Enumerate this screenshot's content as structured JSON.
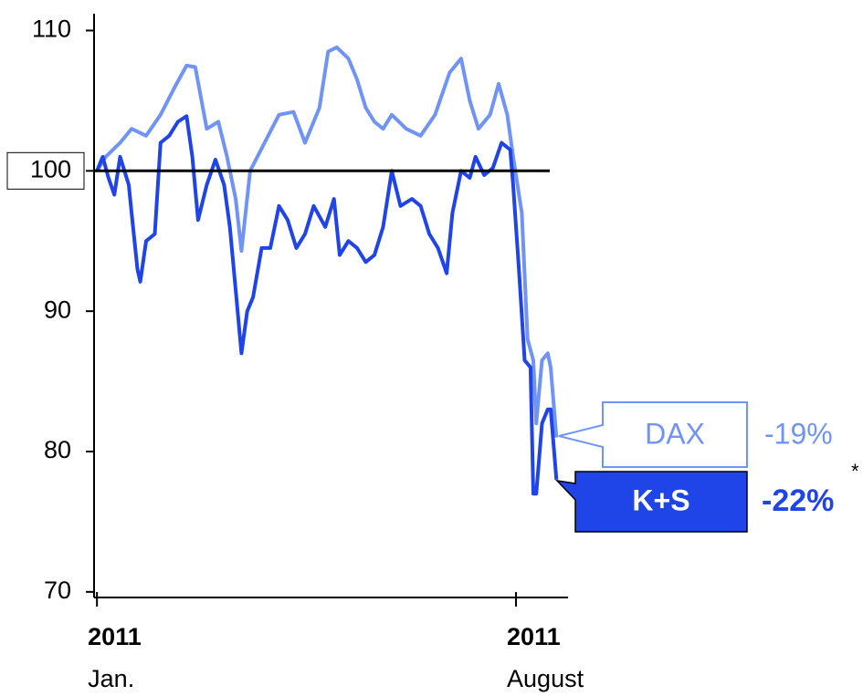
{
  "chart_data": {
    "type": "line",
    "series": [
      {
        "name": "DAX",
        "color": "#7094f5",
        "x": [
          0,
          3,
          8,
          12,
          17,
          22,
          27,
          31,
          34,
          38,
          42,
          45,
          48,
          50,
          53,
          58,
          63,
          68,
          72,
          77,
          80,
          83,
          87,
          90,
          93,
          96,
          99,
          102,
          107,
          112,
          117,
          122,
          126,
          129,
          132,
          136,
          139,
          142,
          144,
          147,
          149,
          151,
          152,
          154,
          156,
          157,
          159
        ],
        "values": [
          100,
          101,
          102,
          103,
          102.5,
          104,
          106,
          107.5,
          107.4,
          103,
          103.5,
          101,
          98,
          94.3,
          100,
          102,
          104,
          104.2,
          102,
          104.5,
          108.5,
          108.8,
          108,
          106.5,
          104.5,
          103.5,
          103,
          104,
          103,
          102.5,
          104,
          107,
          108,
          105,
          103,
          104,
          106.2,
          104,
          101,
          97,
          88,
          86.5,
          82,
          86.5,
          87,
          86,
          81
        ],
        "change_label": "-19%"
      },
      {
        "name": "K+S",
        "color": "#1f44e8",
        "x": [
          0,
          2,
          4,
          6,
          8,
          11,
          12,
          14,
          15,
          17,
          20,
          22,
          25,
          28,
          31,
          33,
          35,
          38,
          41,
          44,
          46,
          48,
          50,
          52,
          54,
          57,
          60,
          63,
          66,
          69,
          72,
          75,
          79,
          82,
          84,
          87,
          90,
          93,
          96,
          99,
          102,
          105,
          109,
          112,
          115,
          118,
          121,
          123,
          126,
          129,
          131,
          134,
          137,
          140,
          143,
          144,
          146,
          148,
          150,
          151,
          152,
          154,
          156,
          157,
          159
        ],
        "values": [
          100,
          101,
          99.5,
          98.3,
          101,
          99,
          97,
          93,
          92.1,
          95,
          95.5,
          102,
          102.5,
          103.5,
          103.9,
          101,
          96.5,
          99,
          100.8,
          99,
          96,
          91.5,
          87,
          90,
          91,
          94.5,
          94.5,
          97.5,
          96.5,
          94.5,
          95.5,
          97.5,
          96,
          98,
          94,
          95,
          94.5,
          93.5,
          94,
          96,
          100,
          97.5,
          98,
          97.5,
          95.5,
          94.5,
          92.7,
          97,
          100,
          99.5,
          101,
          99.7,
          100.2,
          102,
          101.5,
          99,
          93,
          86.5,
          86,
          77,
          77,
          82,
          83,
          83,
          78
        ],
        "change_label": "-22%",
        "footnote_mark": "*"
      }
    ],
    "xlim": [
      -1,
      163
    ],
    "xticks": [
      {
        "value": 0,
        "label": "Jan.",
        "year": "2011"
      },
      {
        "value": 145,
        "label": "August",
        "year": "2011"
      }
    ],
    "ylim": [
      69.6,
      111.2
    ],
    "yticks": [
      70,
      80,
      90,
      100,
      110
    ],
    "reference_line": 100
  }
}
